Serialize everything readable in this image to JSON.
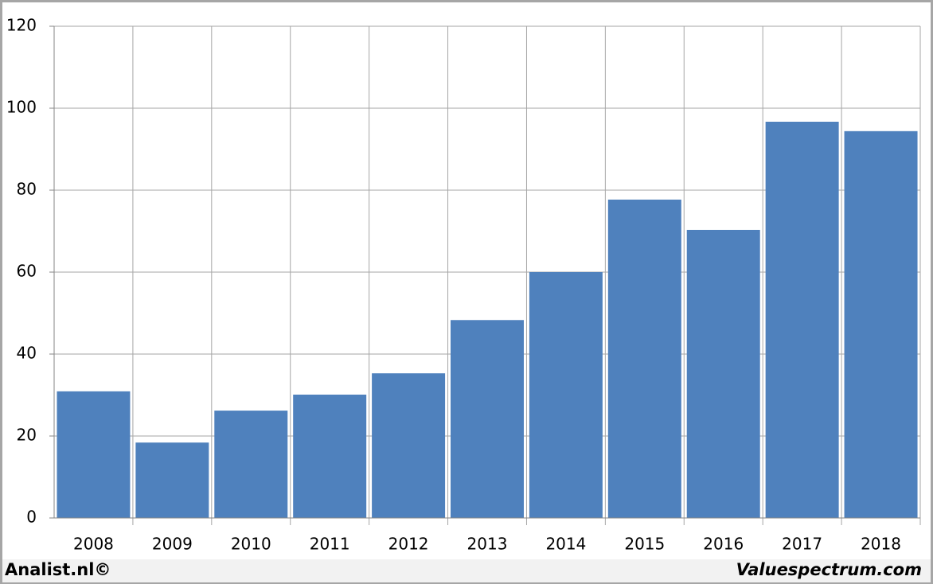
{
  "chart_data": {
    "type": "bar",
    "categories": [
      "2008",
      "2009",
      "2010",
      "2011",
      "2012",
      "2013",
      "2014",
      "2015",
      "2016",
      "2017",
      "2018"
    ],
    "values": [
      30.9,
      18.4,
      26.2,
      30.1,
      35.3,
      48.3,
      60,
      77.7,
      70.3,
      96.7,
      94.4
    ],
    "color": "#4f81bd",
    "ylim": [
      0,
      120
    ],
    "yticks": [
      0,
      20,
      40,
      60,
      80,
      100,
      120
    ],
    "grid": true,
    "annotations": [
      "Analist.nl©",
      "Valuespectrum.com"
    ]
  }
}
